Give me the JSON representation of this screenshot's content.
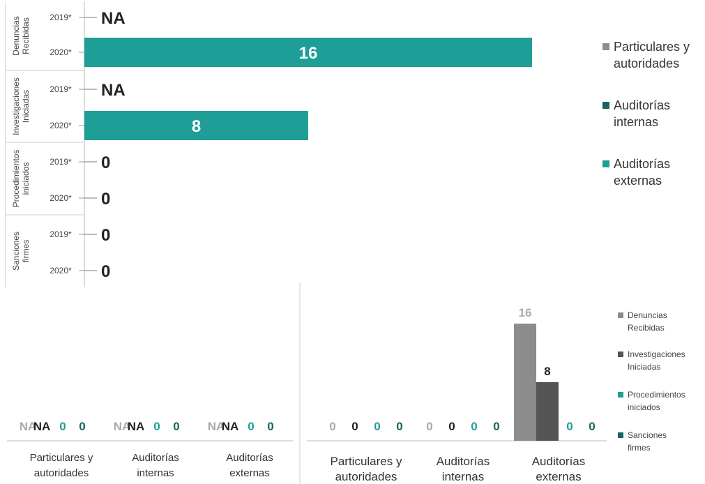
{
  "colors": {
    "particulares": "#8c8c8c",
    "auditorias_internas": "#555555",
    "auditorias_externas": "#1e9e96",
    "series_gray": "#8c8c8c",
    "series_darkgray": "#555555",
    "series_teal": "#1e9e96",
    "series_darkteal": "#176360",
    "legend_particulares": "#8c8c8c",
    "legend_internas": "#176360",
    "legend_externas": "#1e9e96"
  },
  "chart_data": [
    {
      "type": "bar",
      "orientation": "horizontal",
      "groups": [
        {
          "label": "Denuncias Recibidas",
          "lines": [
            "Denuncias",
            "Recibidas"
          ]
        },
        {
          "label": "Investigaciones Iniciadas",
          "lines": [
            "Investigaciones",
            "Iniciadas"
          ]
        },
        {
          "label": "Procedimientos iniciados",
          "lines": [
            "Procedimientos",
            "iniciados"
          ]
        },
        {
          "label": "Sanciones firmes",
          "lines": [
            "Sanciones",
            "firmes"
          ]
        }
      ],
      "categories": [
        "2019*",
        "2020*"
      ],
      "rows": [
        {
          "group": 0,
          "year": "2019*",
          "value": null,
          "label": "NA"
        },
        {
          "group": 0,
          "year": "2020*",
          "value": 16,
          "label": "16"
        },
        {
          "group": 1,
          "year": "2019*",
          "value": null,
          "label": "NA"
        },
        {
          "group": 1,
          "year": "2020*",
          "value": 8,
          "label": "8"
        },
        {
          "group": 2,
          "year": "2019*",
          "value": 0,
          "label": "0"
        },
        {
          "group": 2,
          "year": "2020*",
          "value": 0,
          "label": "0"
        },
        {
          "group": 3,
          "year": "2019*",
          "value": 0,
          "label": "0"
        },
        {
          "group": 3,
          "year": "2020*",
          "value": 0,
          "label": "0"
        }
      ],
      "series": [
        {
          "name": "Particulares y autoridades",
          "lines": [
            "Particulares y",
            "autoridades"
          ]
        },
        {
          "name": "Auditorías internas",
          "lines": [
            "Auditorías",
            "internas"
          ]
        },
        {
          "name": "Auditorías externas",
          "lines": [
            "Auditorías",
            "externas"
          ]
        }
      ],
      "xlim": [
        0,
        16
      ],
      "legend_position": "right",
      "grid": false
    },
    {
      "type": "bar",
      "categories": [
        "Particulares y autoridades",
        "Auditorías internas",
        "Auditorías externas"
      ],
      "category_lines": [
        [
          "Particulares y",
          "autoridades"
        ],
        [
          "Auditorías",
          "internas"
        ],
        [
          "Auditorías",
          "externas"
        ]
      ],
      "value_labels": [
        [
          "NA",
          "NA",
          "0",
          "0"
        ],
        [
          "NA",
          "NA",
          "0",
          "0"
        ],
        [
          "NA",
          "NA",
          "0",
          "0"
        ]
      ],
      "grid": false
    },
    {
      "type": "bar",
      "categories": [
        "Particulares y autoridades",
        "Auditorías internas",
        "Auditorías externas"
      ],
      "category_lines": [
        [
          "Particulares y",
          "autoridades"
        ],
        [
          "Auditorías",
          "internas"
        ],
        [
          "Auditorías",
          "externas"
        ]
      ],
      "series": [
        {
          "name": "Denuncias Recibidas",
          "lines": [
            "Denuncias",
            "Recibidas"
          ],
          "values": [
            0,
            0,
            16
          ]
        },
        {
          "name": "Investigaciones Iniciadas",
          "lines": [
            "Investigaciones",
            "Iniciadas"
          ],
          "values": [
            0,
            0,
            8
          ]
        },
        {
          "name": "Procedimientos iniciados",
          "lines": [
            "Procedimientos",
            "iniciados"
          ],
          "values": [
            0,
            0,
            0
          ]
        },
        {
          "name": "Sanciones firmes",
          "lines": [
            "Sanciones",
            "firmes"
          ],
          "values": [
            0,
            0,
            0
          ]
        }
      ],
      "ylim": [
        0,
        16
      ],
      "legend_position": "right",
      "grid": false
    }
  ]
}
